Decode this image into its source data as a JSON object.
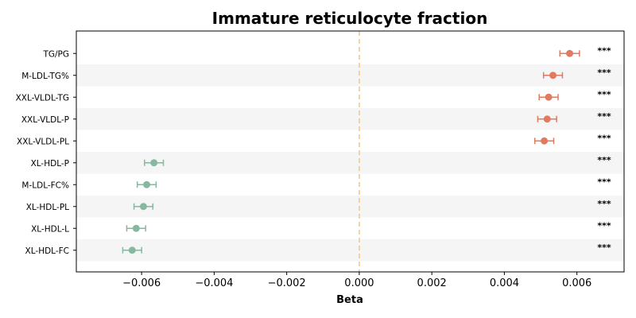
{
  "chart_data": {
    "type": "scatter",
    "subtype": "forest-plot",
    "title": "Immature reticulocyte fraction",
    "xlabel": "Beta",
    "ylabel": "",
    "xlim": [
      -0.0078,
      0.0073
    ],
    "xticks": [
      -0.006,
      -0.004,
      -0.002,
      0.0,
      0.002,
      0.004,
      0.006
    ],
    "xtick_labels": [
      "−0.006",
      "−0.004",
      "−0.002",
      "0.000",
      "0.002",
      "0.004",
      "0.006"
    ],
    "reference_line": 0.0,
    "reference_line_color": "#f5c77e",
    "alternating_row_shading": "#f5f5f5",
    "grid": false,
    "legend": "none",
    "positive_color": "#e07b5f",
    "negative_color": "#86b8a0",
    "rows": [
      {
        "label": "TG/PG",
        "beta": 0.0058,
        "ci_low": 0.00553,
        "ci_high": 0.00607,
        "significance": "***"
      },
      {
        "label": "M-LDL-TG%",
        "beta": 0.00534,
        "ci_low": 0.00508,
        "ci_high": 0.0056,
        "significance": "***"
      },
      {
        "label": "XXL-VLDL-TG",
        "beta": 0.00522,
        "ci_low": 0.00496,
        "ci_high": 0.00548,
        "significance": "***"
      },
      {
        "label": "XXL-VLDL-P",
        "beta": 0.00518,
        "ci_low": 0.00492,
        "ci_high": 0.00544,
        "significance": "***"
      },
      {
        "label": "XXL-VLDL-PL",
        "beta": 0.0051,
        "ci_low": 0.00484,
        "ci_high": 0.00536,
        "significance": "***"
      },
      {
        "label": "XL-HDL-P",
        "beta": -0.00566,
        "ci_low": -0.00592,
        "ci_high": -0.0054,
        "significance": "***"
      },
      {
        "label": "M-LDL-FC%",
        "beta": -0.00586,
        "ci_low": -0.00612,
        "ci_high": -0.0056,
        "significance": "***"
      },
      {
        "label": "XL-HDL-PL",
        "beta": -0.00595,
        "ci_low": -0.00621,
        "ci_high": -0.00569,
        "significance": "***"
      },
      {
        "label": "XL-HDL-L",
        "beta": -0.00615,
        "ci_low": -0.00641,
        "ci_high": -0.00589,
        "significance": "***"
      },
      {
        "label": "XL-HDL-FC",
        "beta": -0.00626,
        "ci_low": -0.00652,
        "ci_high": -0.006,
        "significance": "***"
      }
    ]
  }
}
